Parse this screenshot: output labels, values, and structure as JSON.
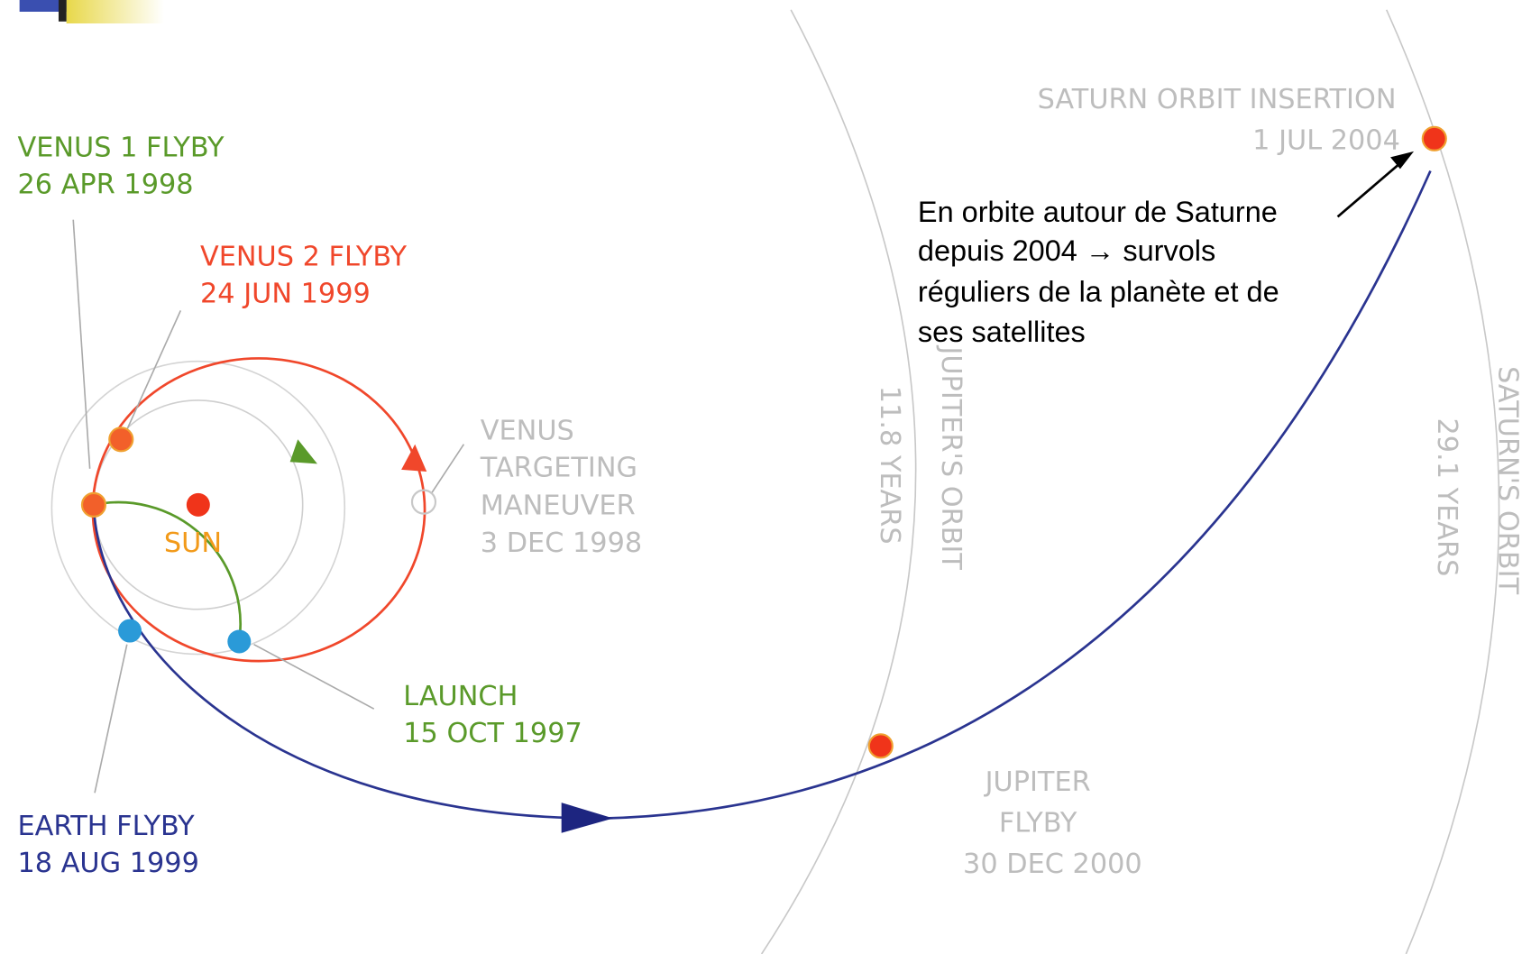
{
  "labels": {
    "venus1": {
      "name": "VENUS 1 FLYBY",
      "date": "26 APR 1998"
    },
    "venus2": {
      "name": "VENUS 2 FLYBY",
      "date": "24 JUN 1999"
    },
    "sun": "SUN",
    "maneuver": {
      "lines": [
        "VENUS",
        "TARGETING",
        "MANEUVER"
      ],
      "date": "3 DEC 1998"
    },
    "launch": {
      "name": "LAUNCH",
      "date": "15 OCT 1997"
    },
    "earth": {
      "name": "EARTH FLYBY",
      "date": "18 AUG 1999"
    },
    "jupiter": {
      "lines": [
        "JUPITER",
        "FLYBY"
      ],
      "date": "30 DEC 2000"
    },
    "saturn": {
      "name": "SATURN ORBIT INSERTION",
      "date": "1 JUL 2004"
    },
    "jupiter_orbit": {
      "name": "JUPITER'S ORBIT",
      "period": "11.8 YEARS"
    },
    "saturn_orbit": {
      "name": "SATURN'S ORBIT",
      "period": "29.1 YEARS"
    }
  },
  "annotation": [
    "En orbite autour de Saturne",
    "depuis 2004 → survols",
    "réguliers de la planète et de",
    "ses satellites"
  ]
}
